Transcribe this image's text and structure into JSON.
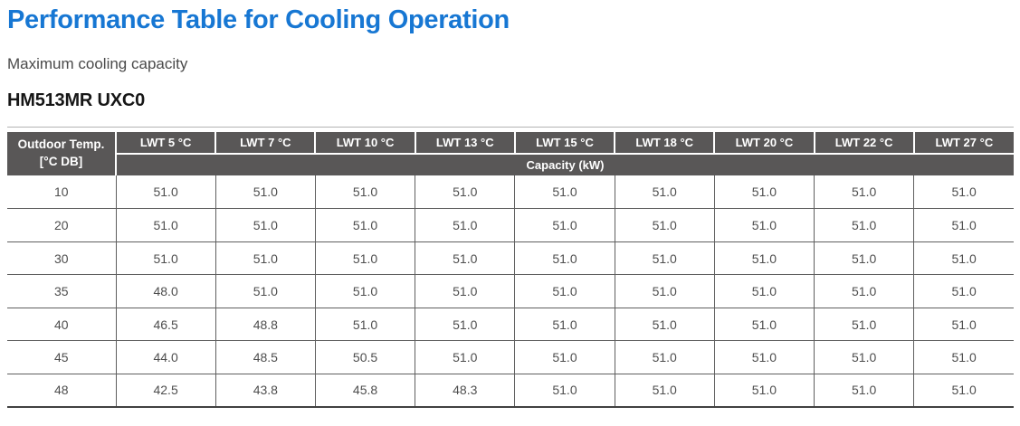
{
  "page": {
    "title": "Performance Table for Cooling Operation",
    "subtitle": "Maximum cooling capacity",
    "model": "HM513MR UXC0"
  },
  "colors": {
    "title_blue": "#1777d3",
    "header_background": "#595757",
    "header_text": "#ffffff",
    "grid_line": "#5f5f5f",
    "table_bottom_border": "#414141",
    "body_text": "#4e4e4e"
  },
  "table_labels": {
    "corner_line1": "Outdoor Temp.",
    "corner_line2": "[°C DB]",
    "capacity_header": "Capacity (kW)"
  },
  "chart_data": {
    "type": "table",
    "title": "Performance Table for Cooling Operation",
    "subtitle": "Maximum cooling capacity",
    "model": "HM513MR UXC0",
    "corner_header": "Outdoor Temp. [°C DB]",
    "value_header": "Capacity (kW)",
    "columns": [
      "LWT 5 °C",
      "LWT 7 °C",
      "LWT 10 °C",
      "LWT 13 °C",
      "LWT 15 °C",
      "LWT 18 °C",
      "LWT 20 °C",
      "LWT 22 °C",
      "LWT 27 °C"
    ],
    "rows": [
      {
        "outdoor_temp": "10",
        "values": [
          "51.0",
          "51.0",
          "51.0",
          "51.0",
          "51.0",
          "51.0",
          "51.0",
          "51.0",
          "51.0"
        ]
      },
      {
        "outdoor_temp": "20",
        "values": [
          "51.0",
          "51.0",
          "51.0",
          "51.0",
          "51.0",
          "51.0",
          "51.0",
          "51.0",
          "51.0"
        ]
      },
      {
        "outdoor_temp": "30",
        "values": [
          "51.0",
          "51.0",
          "51.0",
          "51.0",
          "51.0",
          "51.0",
          "51.0",
          "51.0",
          "51.0"
        ]
      },
      {
        "outdoor_temp": "35",
        "values": [
          "48.0",
          "51.0",
          "51.0",
          "51.0",
          "51.0",
          "51.0",
          "51.0",
          "51.0",
          "51.0"
        ]
      },
      {
        "outdoor_temp": "40",
        "values": [
          "46.5",
          "48.8",
          "51.0",
          "51.0",
          "51.0",
          "51.0",
          "51.0",
          "51.0",
          "51.0"
        ]
      },
      {
        "outdoor_temp": "45",
        "values": [
          "44.0",
          "48.5",
          "50.5",
          "51.0",
          "51.0",
          "51.0",
          "51.0",
          "51.0",
          "51.0"
        ]
      },
      {
        "outdoor_temp": "48",
        "values": [
          "42.5",
          "43.8",
          "45.8",
          "48.3",
          "51.0",
          "51.0",
          "51.0",
          "51.0",
          "51.0"
        ]
      }
    ]
  }
}
